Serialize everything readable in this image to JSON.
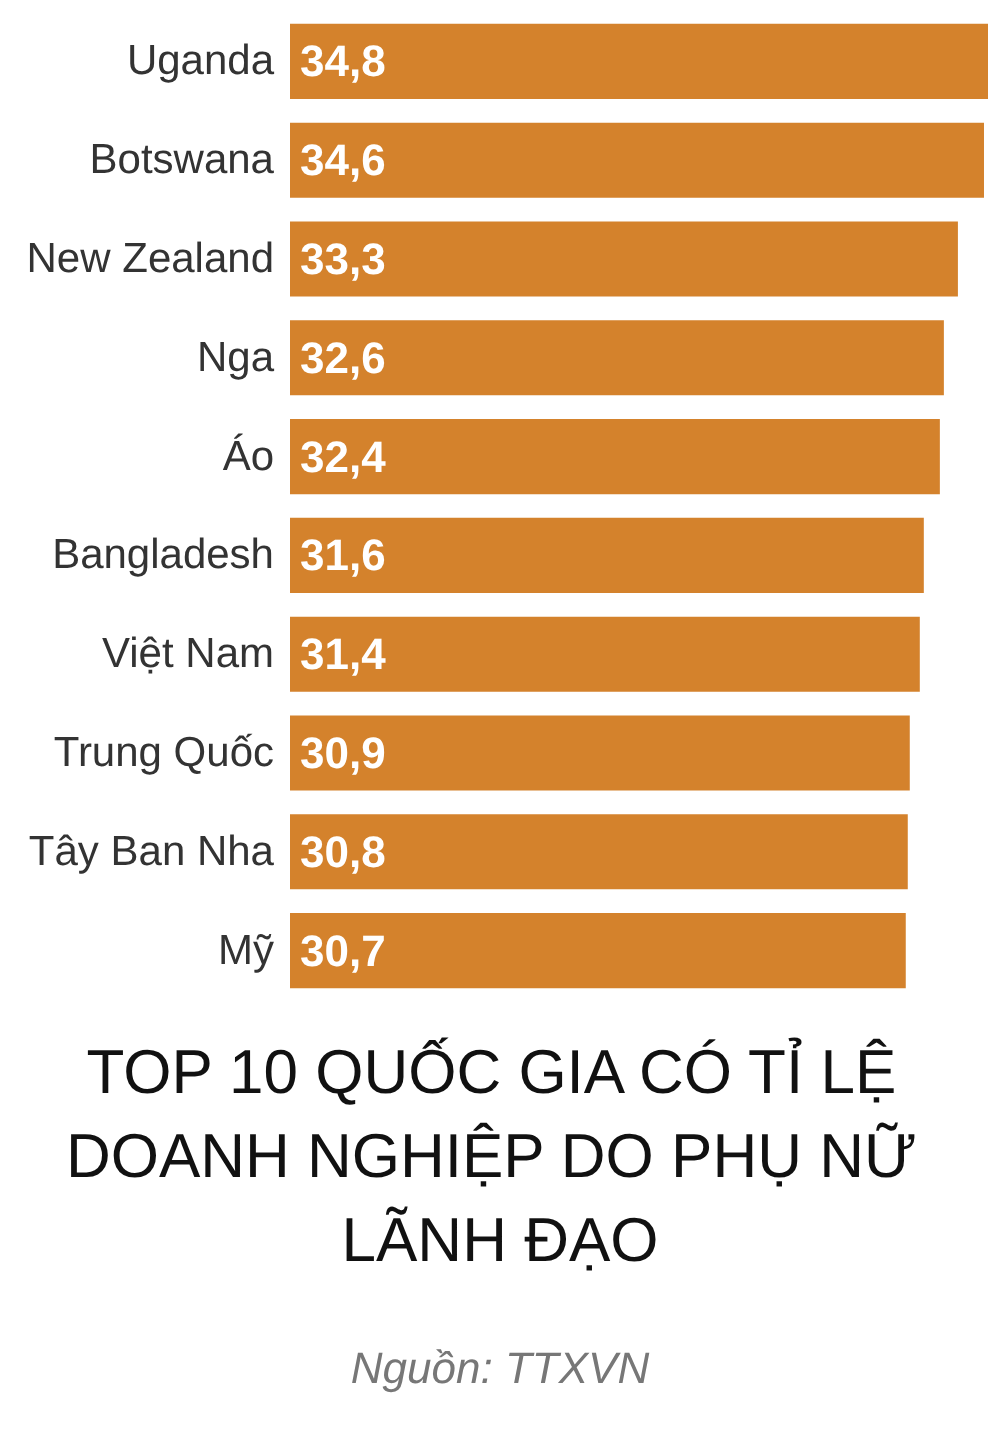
{
  "chart_data": {
    "type": "bar",
    "orientation": "horizontal",
    "title": "TOP 10 QUỐC GIA CÓ TỈ LỆ DOANH NGHIỆP DO PHỤ NỮ LÃNH ĐẠO",
    "categories": [
      "Uganda",
      "Botswana",
      "New Zealand",
      "Nga",
      "Áo",
      "Bangladesh",
      "Việt Nam",
      "Trung Quốc",
      "Tây Ban Nha",
      "Mỹ"
    ],
    "values": [
      34.8,
      34.6,
      33.3,
      32.6,
      32.4,
      31.6,
      31.4,
      30.9,
      30.8,
      30.7
    ],
    "value_labels": [
      "34,8",
      "34,6",
      "33,3",
      "32,6",
      "32,4",
      "31,6",
      "31,4",
      "30,9",
      "30,8",
      "30,7"
    ],
    "color": "#d4822c",
    "annotations": [
      "Nguồn: TTXVN"
    ]
  }
}
